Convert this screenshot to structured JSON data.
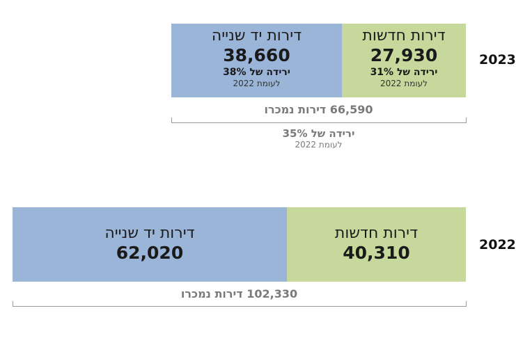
{
  "chart_data": [
    {
      "type": "bar",
      "orientation": "horizontal-stacked",
      "year": "2023",
      "segments": [
        {
          "name": "דירות חדשות",
          "value": 27930,
          "value_label": "27,930",
          "change": "ירידה של 31%",
          "reference": "לעומת 2022",
          "color": "#c6d89b"
        },
        {
          "name": "דירות יד שנייה",
          "value": 38660,
          "value_label": "38,660",
          "change": "ירידה של 38%",
          "reference": "לעומת 2022",
          "color": "#9ab5d8"
        }
      ],
      "total": {
        "value": 66590,
        "label": "66,590 דירות נמכרו",
        "change": "ירידה של 35%",
        "reference": "לעומת 2022"
      }
    },
    {
      "type": "bar",
      "orientation": "horizontal-stacked",
      "year": "2022",
      "segments": [
        {
          "name": "דירות חדשות",
          "value": 40310,
          "value_label": "40,310",
          "color": "#c6d89b"
        },
        {
          "name": "דירות יד שנייה",
          "value": 62020,
          "value_label": "62,020",
          "color": "#9ab5d8"
        }
      ],
      "total": {
        "value": 102330,
        "label": "102,330 דירות נמכרו"
      }
    }
  ]
}
